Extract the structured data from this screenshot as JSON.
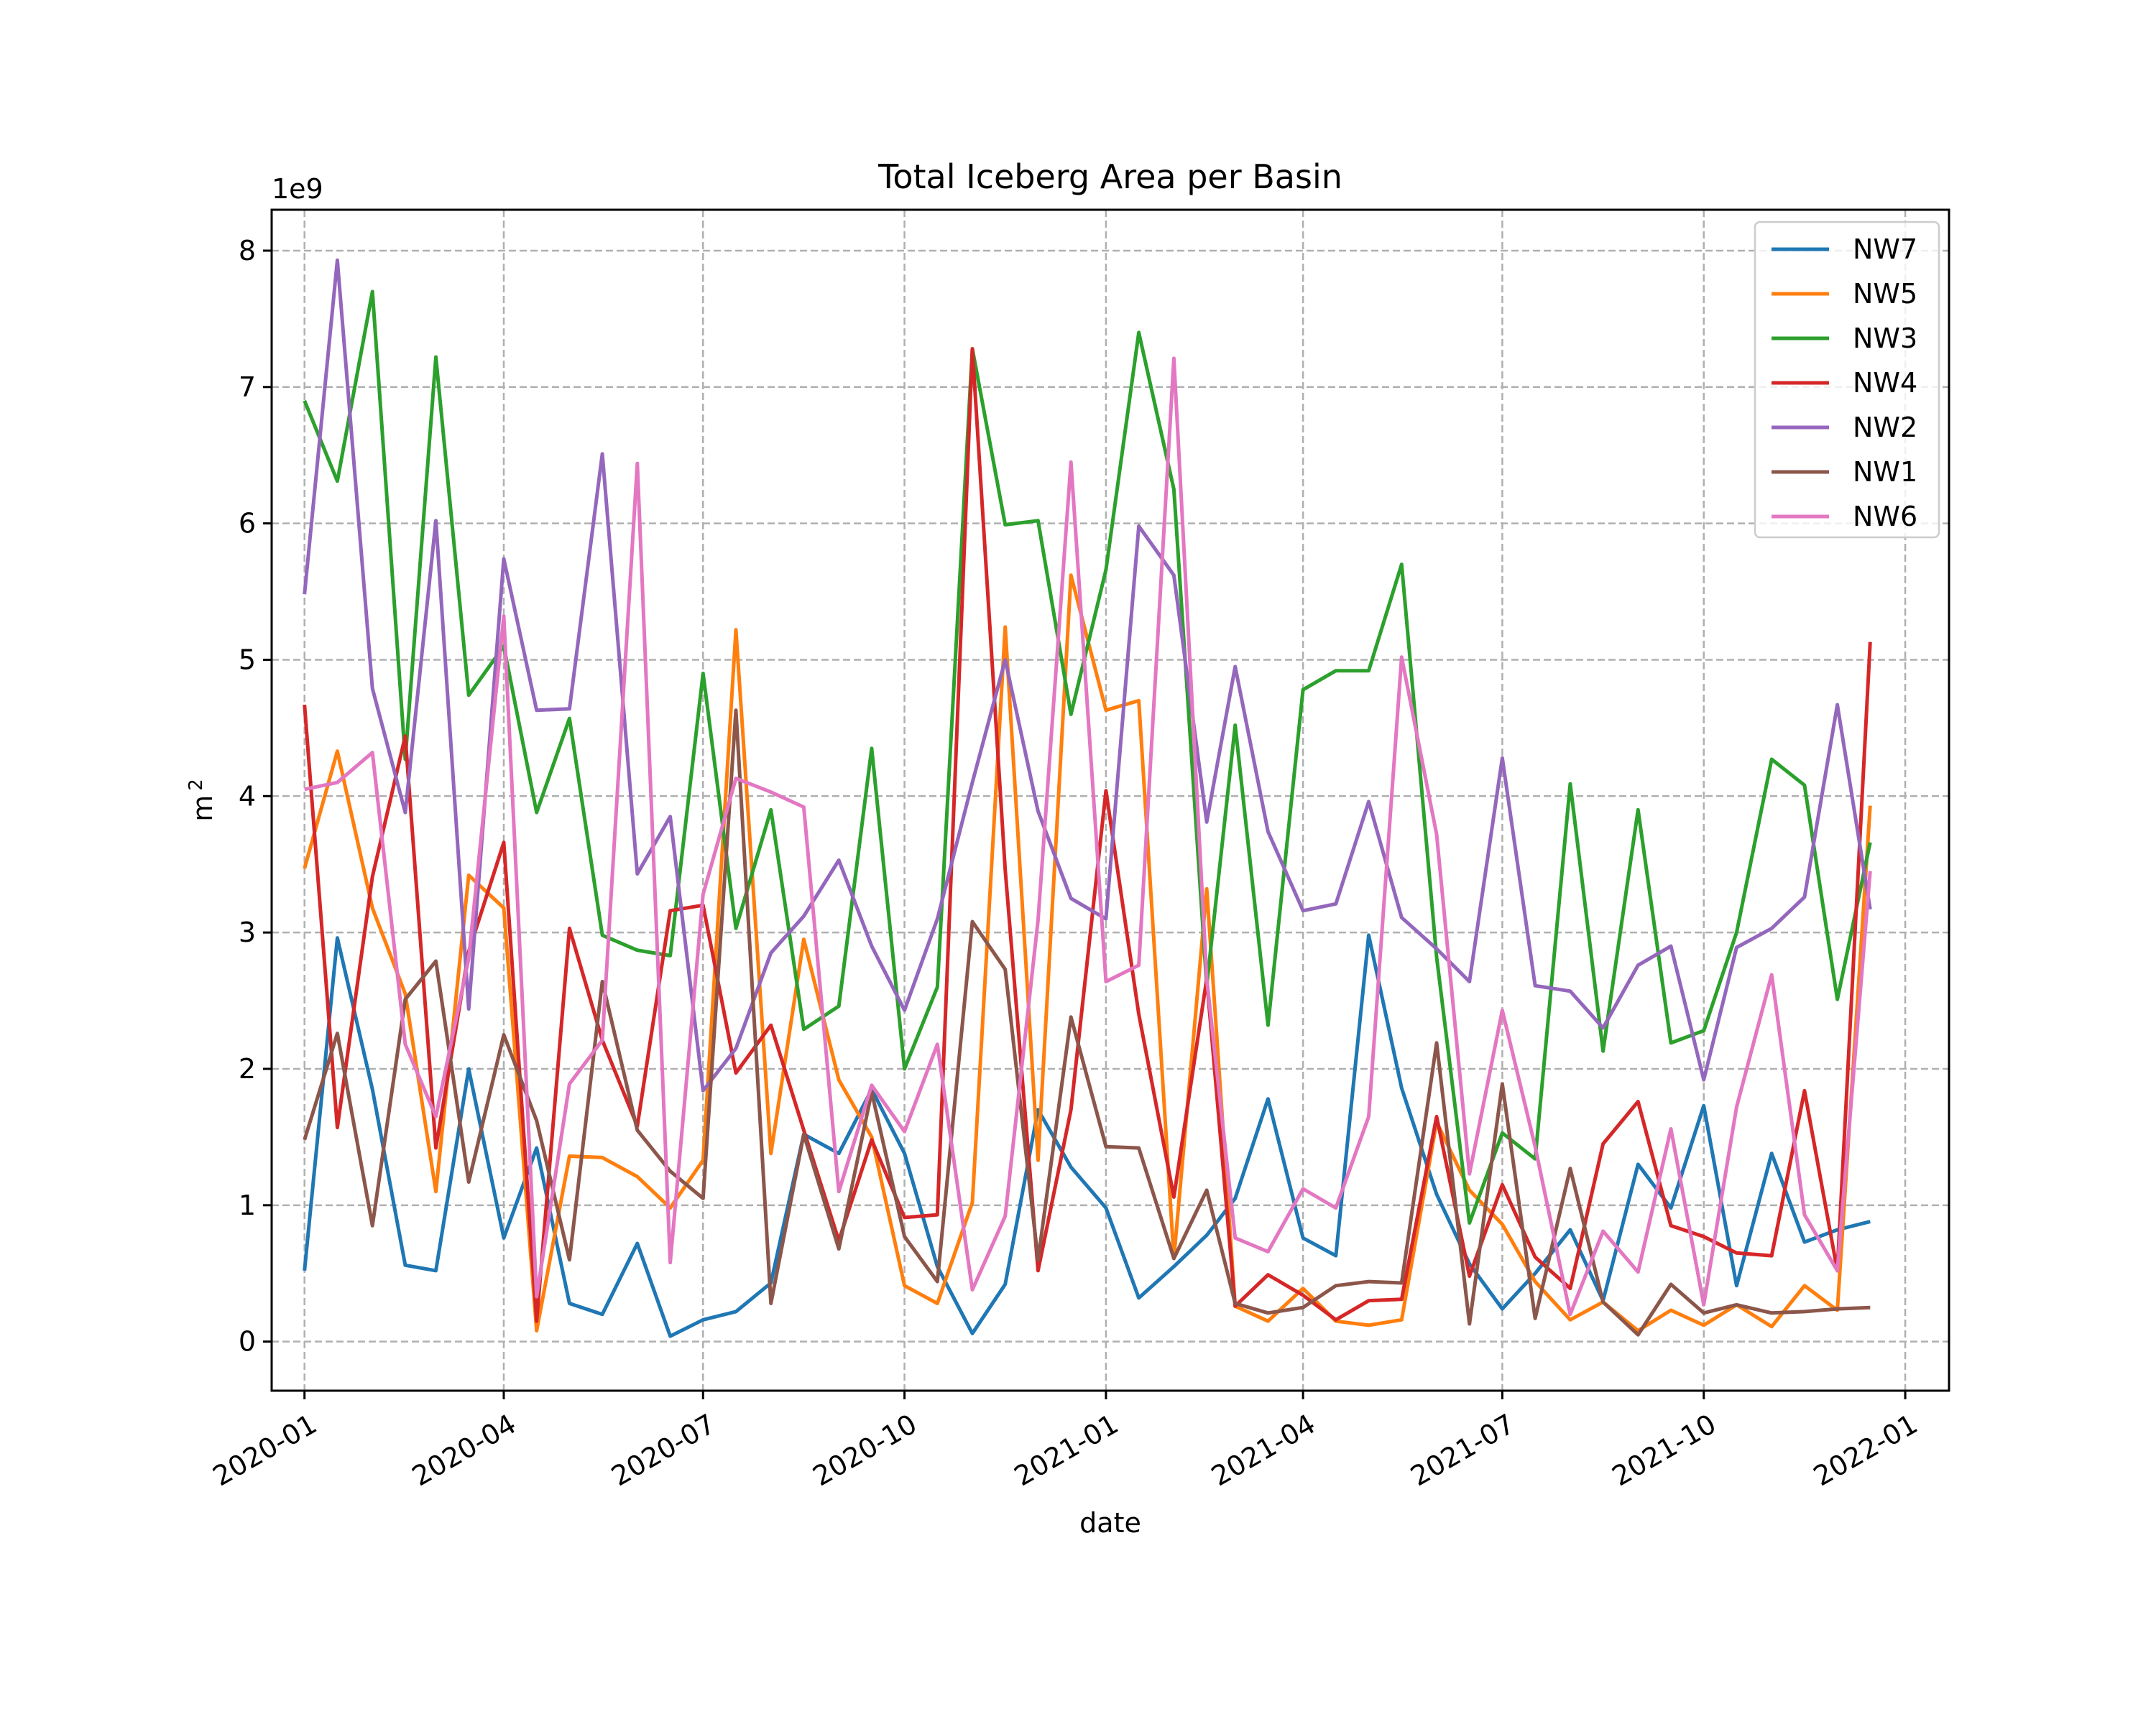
{
  "chart_data": {
    "type": "line",
    "title": "Total Iceberg Area per Basin",
    "xlabel": "date",
    "ylabel": "m",
    "ylabel_superscript": "2",
    "y_multiplier": "1e9",
    "y_scale": 1000000000,
    "ylim": [
      -0.36,
      8.3
    ],
    "xlim": [
      "2019-12-17",
      "2022-01-21"
    ],
    "x_ticks": [
      "2020-01-01",
      "2020-04-01",
      "2020-07-01",
      "2020-10-01",
      "2021-01-01",
      "2021-04-01",
      "2021-07-01",
      "2021-10-01",
      "2022-01-01"
    ],
    "x_tick_labels": [
      "2020-01",
      "2020-04",
      "2020-07",
      "2020-10",
      "2021-01",
      "2021-04",
      "2021-07",
      "2021-10",
      "2022-01"
    ],
    "y_ticks": [
      0,
      1,
      2,
      3,
      4,
      5,
      6,
      7,
      8
    ],
    "y_tick_labels": [
      "0",
      "1",
      "2",
      "3",
      "4",
      "5",
      "6",
      "7",
      "8"
    ],
    "grid": true,
    "legend_position": "top-right",
    "x": [
      "2020-01-01",
      "2020-01-16",
      "2020-02-01",
      "2020-02-16",
      "2020-03-01",
      "2020-03-16",
      "2020-04-01",
      "2020-04-16",
      "2020-05-01",
      "2020-05-16",
      "2020-06-01",
      "2020-06-16",
      "2020-07-01",
      "2020-07-16",
      "2020-08-01",
      "2020-08-16",
      "2020-09-01",
      "2020-09-16",
      "2020-10-01",
      "2020-10-16",
      "2020-11-01",
      "2020-11-16",
      "2020-12-01",
      "2020-12-16",
      "2021-01-01",
      "2021-01-16",
      "2021-02-01",
      "2021-02-16",
      "2021-03-01",
      "2021-03-16",
      "2021-04-01",
      "2021-04-16",
      "2021-05-01",
      "2021-05-16",
      "2021-06-01",
      "2021-06-16",
      "2021-07-01",
      "2021-07-16",
      "2021-08-01",
      "2021-08-16",
      "2021-09-01",
      "2021-09-16",
      "2021-10-01",
      "2021-10-16",
      "2021-11-01",
      "2021-11-16",
      "2021-12-01",
      "2021-12-16"
    ],
    "series": [
      {
        "name": "NW7",
        "color": "#1f77b4",
        "values": [
          0.52,
          2.96,
          1.85,
          0.56,
          0.52,
          2.0,
          0.76,
          1.42,
          0.28,
          0.2,
          0.72,
          0.04,
          0.16,
          0.22,
          0.43,
          1.52,
          1.38,
          1.85,
          1.38,
          0.55,
          0.06,
          0.42,
          1.7,
          1.28,
          0.98,
          0.32,
          0.55,
          0.78,
          1.05,
          1.78,
          0.76,
          0.63,
          2.98,
          1.86,
          1.08,
          0.57,
          0.24,
          0.5,
          0.82,
          0.3,
          1.3,
          0.98,
          1.73,
          0.41,
          1.38,
          0.73,
          0.82,
          0.88
        ]
      },
      {
        "name": "NW5",
        "color": "#ff7f0e",
        "values": [
          3.47,
          4.33,
          3.18,
          2.55,
          1.1,
          3.42,
          3.18,
          0.08,
          1.36,
          1.35,
          1.21,
          0.98,
          1.33,
          5.22,
          1.38,
          2.95,
          1.92,
          1.5,
          0.41,
          0.28,
          1.02,
          5.24,
          1.33,
          5.62,
          4.63,
          4.7,
          0.61,
          3.32,
          0.26,
          0.15,
          0.39,
          0.15,
          0.12,
          0.16,
          1.61,
          1.11,
          0.86,
          0.44,
          0.16,
          0.29,
          0.08,
          0.23,
          0.12,
          0.27,
          0.11,
          0.41,
          0.23,
          3.93
        ]
      },
      {
        "name": "NW3",
        "color": "#2ca02c",
        "values": [
          6.9,
          6.31,
          7.7,
          4.27,
          7.22,
          4.74,
          5.1,
          3.88,
          4.57,
          2.98,
          2.87,
          2.83,
          4.9,
          3.03,
          3.9,
          2.29,
          2.46,
          4.35,
          2.0,
          2.6,
          7.28,
          5.99,
          6.02,
          4.6,
          5.66,
          7.4,
          6.25,
          2.61,
          4.52,
          2.32,
          4.78,
          4.92,
          4.92,
          5.7,
          2.82,
          0.87,
          1.53,
          1.34,
          4.09,
          2.13,
          3.9,
          2.19,
          2.28,
          3.0,
          4.27,
          4.08,
          2.51,
          3.66
        ]
      },
      {
        "name": "NW4",
        "color": "#d62728",
        "values": [
          4.67,
          1.57,
          3.41,
          4.44,
          1.42,
          2.86,
          3.66,
          0.15,
          3.03,
          2.21,
          1.58,
          3.16,
          3.2,
          1.97,
          2.32,
          1.55,
          0.74,
          1.48,
          0.91,
          0.93,
          7.28,
          3.46,
          0.52,
          1.7,
          4.04,
          2.4,
          1.06,
          2.66,
          0.26,
          0.49,
          0.34,
          0.16,
          0.3,
          0.31,
          1.65,
          0.48,
          1.15,
          0.62,
          0.39,
          1.45,
          1.76,
          0.85,
          0.77,
          0.65,
          0.63,
          1.84,
          0.52,
          5.13
        ]
      },
      {
        "name": "NW2",
        "color": "#9467bd",
        "values": [
          5.48,
          7.93,
          4.79,
          3.88,
          6.02,
          2.44,
          5.74,
          4.63,
          4.64,
          6.51,
          3.43,
          3.85,
          1.84,
          2.15,
          2.85,
          3.12,
          3.53,
          2.9,
          2.43,
          3.1,
          4.1,
          5.0,
          3.89,
          3.25,
          3.1,
          5.98,
          5.62,
          3.81,
          4.95,
          3.74,
          3.16,
          3.21,
          3.96,
          3.11,
          2.88,
          2.64,
          4.28,
          2.61,
          2.57,
          2.3,
          2.76,
          2.9,
          1.92,
          2.89,
          3.03,
          3.26,
          4.67,
          3.17
        ]
      },
      {
        "name": "NW1",
        "color": "#8c564b",
        "values": [
          1.48,
          2.26,
          0.85,
          2.51,
          2.79,
          1.17,
          2.25,
          1.62,
          0.6,
          2.64,
          1.55,
          1.25,
          1.05,
          4.63,
          0.28,
          1.52,
          0.68,
          1.83,
          0.77,
          0.44,
          3.08,
          2.73,
          0.6,
          2.38,
          1.43,
          1.42,
          0.61,
          1.11,
          0.28,
          0.21,
          0.25,
          0.41,
          0.44,
          0.43,
          2.19,
          0.13,
          1.89,
          0.17,
          1.27,
          0.29,
          0.05,
          0.42,
          0.21,
          0.27,
          0.21,
          0.22,
          0.24,
          0.25
        ]
      },
      {
        "name": "NW6",
        "color": "#e377c2",
        "values": [
          4.05,
          4.1,
          4.32,
          2.18,
          1.65,
          2.81,
          5.32,
          0.33,
          1.89,
          2.21,
          6.44,
          0.58,
          3.28,
          4.13,
          4.03,
          3.92,
          1.1,
          1.88,
          1.54,
          2.18,
          0.38,
          0.92,
          3.09,
          6.45,
          2.64,
          2.76,
          7.21,
          2.66,
          0.76,
          0.66,
          1.12,
          0.98,
          1.65,
          5.02,
          3.72,
          1.23,
          2.43,
          1.43,
          0.2,
          0.81,
          0.51,
          1.56,
          0.27,
          1.72,
          2.69,
          0.93,
          0.52,
          3.45
        ]
      }
    ]
  }
}
